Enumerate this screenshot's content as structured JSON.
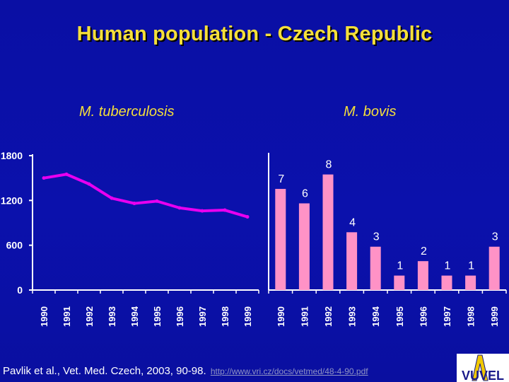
{
  "title": "Human population - Czech Republic",
  "footer": {
    "citation": "Pavlik et al., Vet. Med. Czech, 2003, 90-98.",
    "link": "http://www.vri.cz/docs/vetmed/48-4-90.pdf"
  },
  "logo": {
    "icon": "vuvel-logo",
    "text": "VUVEL"
  },
  "colors": {
    "line": "#e800f0",
    "bar": "#ff92c6",
    "title": "#f5df3a",
    "axis": "#ffffff",
    "background": "#0b10a8"
  },
  "chart_data": [
    {
      "type": "line",
      "title": "M. tuberculosis",
      "x": [
        "1990",
        "1991",
        "1992",
        "1993",
        "1994",
        "1995",
        "1996",
        "1997",
        "1998",
        "1999"
      ],
      "values": [
        1500,
        1550,
        1420,
        1230,
        1160,
        1190,
        1100,
        1060,
        1070,
        980
      ],
      "ylim": [
        0,
        1800
      ],
      "yticks": [
        "0",
        "600",
        "1200",
        "1800"
      ],
      "grid": false
    },
    {
      "type": "bar",
      "title": "M. bovis",
      "categories": [
        "1990",
        "1991",
        "1992",
        "1993",
        "1994",
        "1995",
        "1996",
        "1997",
        "1998",
        "1999"
      ],
      "values": [
        7,
        6,
        8,
        4,
        3,
        1,
        2,
        1,
        1,
        3
      ],
      "data_labels": [
        "7",
        "6",
        "8",
        "4",
        "3",
        "1",
        "2",
        "1",
        "1",
        "3"
      ],
      "ylim": [
        0,
        9.5
      ],
      "grid": false
    }
  ]
}
